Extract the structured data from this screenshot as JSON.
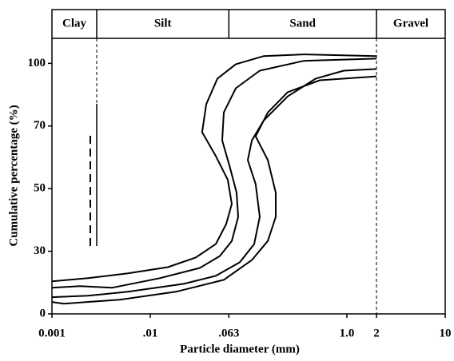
{
  "chart_data": {
    "type": "line",
    "zones": [
      "Clay",
      "Silt",
      "Sand",
      "Gravel"
    ],
    "xlabel": "Particle diameter (mm)",
    "ylabel": "Cumulative percentage (%)",
    "xscale": "log",
    "xlim": [
      0.001,
      10
    ],
    "xticks": [
      {
        "value": 0.001,
        "label": "0.001"
      },
      {
        "value": 0.01,
        "label": ".01"
      },
      {
        "value": 0.063,
        "label": ".063"
      },
      {
        "value": 1,
        "label": "1.0"
      },
      2,
      10
    ],
    "ylim": [
      0,
      112
    ],
    "yticks": [
      0,
      30,
      50,
      70,
      100
    ],
    "color": "#000000",
    "series": [
      {
        "x": [
          0.001,
          0.00232,
          0.00592,
          0.0151,
          0.029,
          0.0464,
          0.0592,
          0.0675,
          0.0615,
          0.0464,
          0.0337,
          0.0371,
          0.0482,
          0.0741,
          0.143,
          0.364,
          2
        ],
        "values": [
          15.6,
          17.1,
          19.4,
          22.4,
          27.0,
          32.3,
          38.7,
          45.1,
          52.8,
          60.4,
          68.0,
          80.4,
          92.7,
          99.6,
          103.5,
          104.3,
          103.5
        ]
      },
      {
        "x": [
          0.001,
          0.00193,
          0.00407,
          0.0125,
          0.0319,
          0.051,
          0.0675,
          0.0784,
          0.0755,
          0.065,
          0.0539,
          0.056,
          0.0741,
          0.13,
          0.364,
          2
        ],
        "values": [
          12.5,
          13.3,
          12.5,
          17.1,
          22.0,
          27.7,
          33.3,
          41.0,
          48.7,
          56.5,
          65.4,
          76.5,
          88.1,
          96.5,
          101.2,
          102.3
        ]
      },
      {
        "x": [
          0.001,
          0.00232,
          0.00592,
          0.0219,
          0.0464,
          0.0814,
          0.114,
          0.13,
          0.118,
          0.0982,
          0.108,
          0.143,
          0.25,
          0.482,
          0.927,
          2
        ],
        "values": [
          8.0,
          8.7,
          10.6,
          14.4,
          18.2,
          24.7,
          32.3,
          41.0,
          51.5,
          59.1,
          65.4,
          72.7,
          84.2,
          92.7,
          96.5,
          97.3
        ]
      },
      {
        "x": [
          0.001,
          0.00132,
          0.00491,
          0.0182,
          0.056,
          0.108,
          0.157,
          0.189,
          0.189,
          0.157,
          0.118,
          0.157,
          0.25,
          0.53,
          2
        ],
        "values": [
          5.7,
          4.9,
          6.8,
          10.6,
          16.3,
          25.8,
          33.3,
          41.0,
          48.7,
          59.1,
          66.7,
          76.5,
          86.2,
          91.9,
          93.8
        ]
      }
    ]
  }
}
